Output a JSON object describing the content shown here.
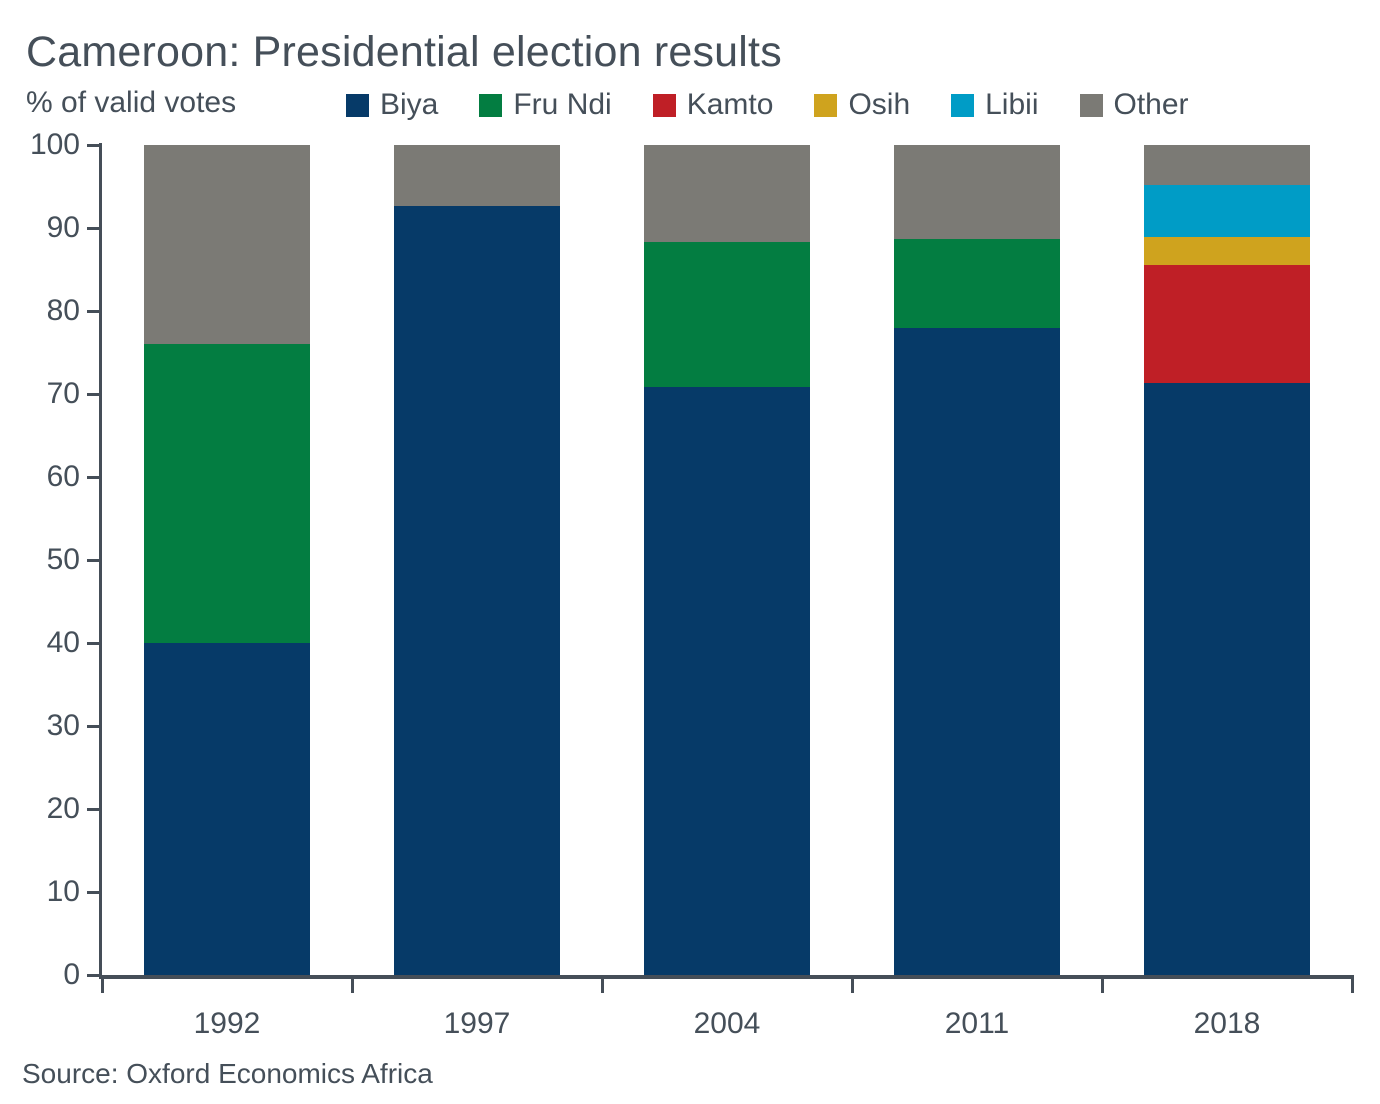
{
  "header": {
    "title": "Cameroon: Presidential election results",
    "subtitle": "% of valid votes"
  },
  "footer": {
    "source": "Source: Oxford Economics Africa"
  },
  "colors": {
    "text": "#454f59",
    "axis": "#454e58",
    "background": "#ffffff"
  },
  "chart_data": {
    "type": "bar",
    "stacked": true,
    "title": "Cameroon: Presidential election results",
    "ylabel": "% of valid votes",
    "categories": [
      "1992",
      "1997",
      "2004",
      "2011",
      "2018"
    ],
    "series": [
      {
        "name": "Biya",
        "color": "#063a68",
        "values": [
          40.0,
          92.6,
          70.9,
          78.0,
          71.3
        ]
      },
      {
        "name": "Fru Ndi",
        "color": "#037d41",
        "values": [
          36.0,
          0,
          17.4,
          10.7,
          0
        ]
      },
      {
        "name": "Kamto",
        "color": "#bf1f26",
        "values": [
          0,
          0,
          0,
          0,
          14.2
        ]
      },
      {
        "name": "Osih",
        "color": "#cfa31e",
        "values": [
          0,
          0,
          0,
          0,
          3.4
        ]
      },
      {
        "name": "Libii",
        "color": "#009cc6",
        "values": [
          0,
          0,
          0,
          0,
          6.3
        ]
      },
      {
        "name": "Other",
        "color": "#7b7a75",
        "values": [
          24.0,
          7.4,
          11.7,
          11.3,
          4.8
        ]
      }
    ],
    "ylim": [
      0,
      100
    ],
    "yticks": [
      0,
      10,
      20,
      30,
      40,
      50,
      60,
      70,
      80,
      90,
      100
    ],
    "legend_position": "top",
    "grid": false
  }
}
